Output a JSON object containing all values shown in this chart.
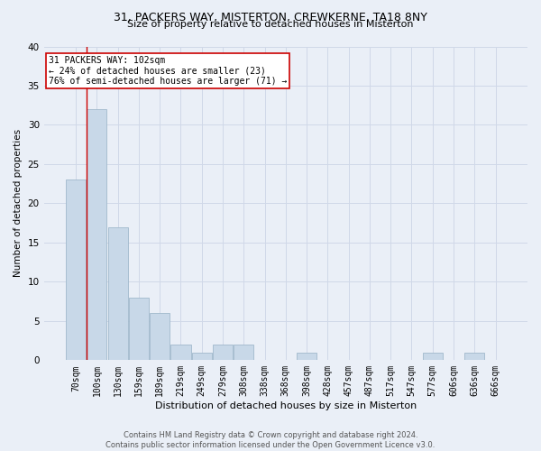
{
  "title1": "31, PACKERS WAY, MISTERTON, CREWKERNE, TA18 8NY",
  "title2": "Size of property relative to detached houses in Misterton",
  "xlabel": "Distribution of detached houses by size in Misterton",
  "ylabel": "Number of detached properties",
  "footer1": "Contains HM Land Registry data © Crown copyright and database right 2024.",
  "footer2": "Contains public sector information licensed under the Open Government Licence v3.0.",
  "bin_labels": [
    "70sqm",
    "100sqm",
    "130sqm",
    "159sqm",
    "189sqm",
    "219sqm",
    "249sqm",
    "279sqm",
    "308sqm",
    "338sqm",
    "368sqm",
    "398sqm",
    "428sqm",
    "457sqm",
    "487sqm",
    "517sqm",
    "547sqm",
    "577sqm",
    "606sqm",
    "636sqm",
    "666sqm"
  ],
  "bar_values": [
    23,
    32,
    17,
    8,
    6,
    2,
    1,
    2,
    2,
    0,
    0,
    1,
    0,
    0,
    0,
    0,
    0,
    1,
    0,
    1,
    0
  ],
  "bar_color": "#c8d8e8",
  "bar_edge_color": "#a0b8cc",
  "grid_color": "#d0d8e8",
  "annotation_line1": "31 PACKERS WAY: 102sqm",
  "annotation_line2": "← 24% of detached houses are smaller (23)",
  "annotation_line3": "76% of semi-detached houses are larger (71) →",
  "annotation_box_color": "#ffffff",
  "annotation_border_color": "#cc0000",
  "vline_color": "#cc0000",
  "vline_x": 0.5,
  "ylim": [
    0,
    40
  ],
  "yticks": [
    0,
    5,
    10,
    15,
    20,
    25,
    30,
    35,
    40
  ],
  "background_color": "#eaeff7",
  "plot_bg_color": "#eaeff7",
  "title1_fontsize": 9,
  "title2_fontsize": 8,
  "xlabel_fontsize": 8,
  "ylabel_fontsize": 7.5,
  "tick_fontsize": 7,
  "footer_fontsize": 6,
  "annot_fontsize": 7
}
